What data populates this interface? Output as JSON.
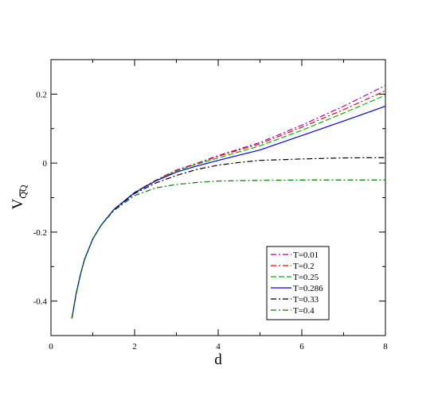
{
  "chart_data": {
    "type": "line",
    "xlabel": "d",
    "ylabel_main": "V",
    "ylabel_sub": "QQ",
    "xlim": [
      0,
      8
    ],
    "ylim": [
      -0.5,
      0.3
    ],
    "xticks": [
      0,
      2,
      4,
      6,
      8
    ],
    "yticks": [
      -0.4,
      -0.2,
      0,
      0.2
    ],
    "xtick_labels": [
      "0",
      "2",
      "4",
      "6",
      "8"
    ],
    "ytick_labels": [
      "-0.4",
      "-0.2",
      "0",
      "0.2"
    ],
    "grid": false,
    "legend_position": "bottom-right",
    "series": [
      {
        "name": "T=0.01",
        "color": "#b000b0",
        "dash": "dashdot",
        "x": [
          0.5,
          0.6,
          0.7,
          0.8,
          1.0,
          1.2,
          1.5,
          2.0,
          2.5,
          3.0,
          3.5,
          4.0,
          5.0,
          6.0,
          7.0,
          8.0
        ],
        "y": [
          -0.45,
          -0.38,
          -0.325,
          -0.28,
          -0.22,
          -0.18,
          -0.135,
          -0.085,
          -0.05,
          -0.02,
          0.0,
          0.022,
          0.06,
          0.11,
          0.165,
          0.225
        ]
      },
      {
        "name": "T=0.2",
        "color": "#ff0000",
        "dash": "dashdot",
        "x": [
          0.5,
          0.6,
          0.7,
          0.8,
          1.0,
          1.2,
          1.5,
          2.0,
          2.5,
          3.0,
          3.5,
          4.0,
          5.0,
          6.0,
          7.0,
          8.0
        ],
        "y": [
          -0.45,
          -0.38,
          -0.325,
          -0.28,
          -0.22,
          -0.18,
          -0.135,
          -0.085,
          -0.05,
          -0.021,
          -0.001,
          0.02,
          0.056,
          0.104,
          0.155,
          0.21
        ]
      },
      {
        "name": "T=0.25",
        "color": "#00bb00",
        "dash": "dashed",
        "x": [
          0.5,
          0.6,
          0.7,
          0.8,
          1.0,
          1.2,
          1.5,
          2.0,
          2.5,
          3.0,
          3.5,
          4.0,
          5.0,
          6.0,
          7.0,
          8.0
        ],
        "y": [
          -0.45,
          -0.38,
          -0.325,
          -0.28,
          -0.22,
          -0.18,
          -0.135,
          -0.085,
          -0.051,
          -0.023,
          -0.003,
          0.015,
          0.05,
          0.095,
          0.145,
          0.197
        ]
      },
      {
        "name": "T=0.286",
        "color": "#0000ff",
        "dash": "solid",
        "x": [
          0.5,
          0.6,
          0.7,
          0.8,
          1.0,
          1.2,
          1.5,
          2.0,
          2.5,
          3.0,
          3.5,
          4.0,
          5.0,
          6.0,
          7.0,
          8.0
        ],
        "y": [
          -0.45,
          -0.38,
          -0.325,
          -0.28,
          -0.22,
          -0.18,
          -0.135,
          -0.086,
          -0.052,
          -0.026,
          -0.008,
          0.008,
          0.038,
          0.08,
          0.122,
          0.165
        ]
      },
      {
        "name": "T=0.33",
        "color": "#000000",
        "dash": "dashdot",
        "x": [
          0.5,
          0.6,
          0.7,
          0.8,
          1.0,
          1.2,
          1.5,
          2.0,
          2.5,
          3.0,
          3.5,
          4.0,
          4.5,
          5.0,
          6.0,
          7.0,
          8.0
        ],
        "y": [
          -0.45,
          -0.38,
          -0.325,
          -0.28,
          -0.22,
          -0.18,
          -0.137,
          -0.088,
          -0.058,
          -0.036,
          -0.018,
          -0.006,
          0.002,
          0.008,
          0.012,
          0.015,
          0.016
        ]
      },
      {
        "name": "T=0.4",
        "color": "#008000",
        "dash": "dashdot",
        "x": [
          0.5,
          0.6,
          0.7,
          0.8,
          1.0,
          1.2,
          1.5,
          2.0,
          2.5,
          3.0,
          3.5,
          4.0,
          5.0,
          6.0,
          7.0,
          8.0
        ],
        "y": [
          -0.45,
          -0.38,
          -0.325,
          -0.28,
          -0.22,
          -0.18,
          -0.138,
          -0.094,
          -0.072,
          -0.062,
          -0.056,
          -0.052,
          -0.05,
          -0.049,
          -0.049,
          -0.049
        ]
      }
    ]
  }
}
